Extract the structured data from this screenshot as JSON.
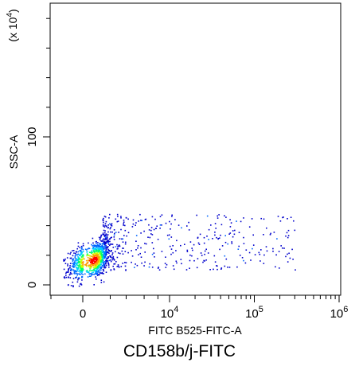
{
  "chart_data": {
    "type": "scatter",
    "title": "CD158b/j-FITC",
    "xlabel": "FITC B525-FITC-A",
    "ylabel": "SSC-A",
    "y_multiplier_label": "(x 10^4)",
    "x_scale": "biexponential",
    "y_scale": "linear",
    "xlim": [
      -1000,
      1000000
    ],
    "ylim": [
      -5,
      190
    ],
    "x_tick_labels": [
      "0",
      "10^4",
      "10^5",
      "10^6"
    ],
    "x_tick_values": [
      0,
      10000,
      100000,
      1000000
    ],
    "y_tick_labels": [
      "0",
      "100"
    ],
    "y_tick_values": [
      0,
      100
    ],
    "grid": false,
    "colormap": [
      "#0000cc",
      "#0066ff",
      "#00ccff",
      "#00ff66",
      "#ccff00",
      "#ff9900",
      "#ff0000"
    ],
    "populations": [
      {
        "name": "main cluster",
        "x_center": 150,
        "y_center": 17,
        "x_spread": 300,
        "y_spread": 6,
        "count": 900
      },
      {
        "name": "tail",
        "x_range": [
          500,
          300000
        ],
        "y_range": [
          10,
          48
        ],
        "count": 450
      }
    ]
  }
}
